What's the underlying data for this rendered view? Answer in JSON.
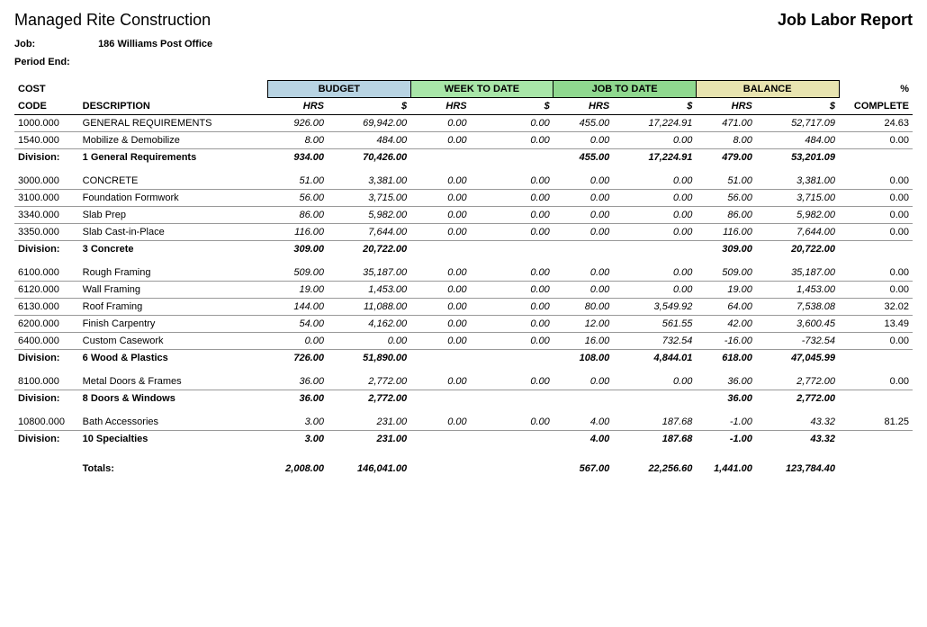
{
  "company": "Managed Rite Construction",
  "report_title": "Job Labor Report",
  "job_label": "Job:",
  "job_value": "186  Williams Post Office",
  "period_end_label": "Period End:",
  "period_end_value": "",
  "header": {
    "cost": "COST",
    "code": "CODE",
    "description": "DESCRIPTION",
    "budget": "BUDGET",
    "week": "WEEK TO DATE",
    "job": "JOB TO DATE",
    "balance": "BALANCE",
    "hrs": "HRS",
    "amt": "$",
    "pct_top": "%",
    "pct_bottom": "COMPLETE"
  },
  "colors": {
    "budget": "#b8d4e3",
    "week": "#a8e6a8",
    "job": "#8fd88f",
    "balance": "#e8e4b0"
  },
  "groups": [
    {
      "rows": [
        {
          "code": "1000.000",
          "desc": "GENERAL REQUIREMENTS",
          "b_hrs": "926.00",
          "b_amt": "69,942.00",
          "w_hrs": "0.00",
          "w_amt": "0.00",
          "j_hrs": "455.00",
          "j_amt": "17,224.91",
          "bal_hrs": "471.00",
          "bal_amt": "52,717.09",
          "pct": "24.63"
        },
        {
          "code": "1540.000",
          "desc": "Mobilize & Demobilize",
          "b_hrs": "8.00",
          "b_amt": "484.00",
          "w_hrs": "0.00",
          "w_amt": "0.00",
          "j_hrs": "0.00",
          "j_amt": "0.00",
          "bal_hrs": "8.00",
          "bal_amt": "484.00",
          "pct": "0.00"
        }
      ],
      "div_label": "Division:",
      "div_name": "1  General Requirements",
      "b_hrs": "934.00",
      "b_amt": "70,426.00",
      "w_hrs": "",
      "w_amt": "",
      "j_hrs": "455.00",
      "j_amt": "17,224.91",
      "bal_hrs": "479.00",
      "bal_amt": "53,201.09",
      "pct": ""
    },
    {
      "rows": [
        {
          "code": "3000.000",
          "desc": "CONCRETE",
          "b_hrs": "51.00",
          "b_amt": "3,381.00",
          "w_hrs": "0.00",
          "w_amt": "0.00",
          "j_hrs": "0.00",
          "j_amt": "0.00",
          "bal_hrs": "51.00",
          "bal_amt": "3,381.00",
          "pct": "0.00"
        },
        {
          "code": "3100.000",
          "desc": "Foundation Formwork",
          "b_hrs": "56.00",
          "b_amt": "3,715.00",
          "w_hrs": "0.00",
          "w_amt": "0.00",
          "j_hrs": "0.00",
          "j_amt": "0.00",
          "bal_hrs": "56.00",
          "bal_amt": "3,715.00",
          "pct": "0.00"
        },
        {
          "code": "3340.000",
          "desc": "Slab Prep",
          "b_hrs": "86.00",
          "b_amt": "5,982.00",
          "w_hrs": "0.00",
          "w_amt": "0.00",
          "j_hrs": "0.00",
          "j_amt": "0.00",
          "bal_hrs": "86.00",
          "bal_amt": "5,982.00",
          "pct": "0.00"
        },
        {
          "code": "3350.000",
          "desc": "Slab Cast-in-Place",
          "b_hrs": "116.00",
          "b_amt": "7,644.00",
          "w_hrs": "0.00",
          "w_amt": "0.00",
          "j_hrs": "0.00",
          "j_amt": "0.00",
          "bal_hrs": "116.00",
          "bal_amt": "7,644.00",
          "pct": "0.00"
        }
      ],
      "div_label": "Division:",
      "div_name": "3  Concrete",
      "b_hrs": "309.00",
      "b_amt": "20,722.00",
      "w_hrs": "",
      "w_amt": "",
      "j_hrs": "",
      "j_amt": "",
      "bal_hrs": "309.00",
      "bal_amt": "20,722.00",
      "pct": ""
    },
    {
      "rows": [
        {
          "code": "6100.000",
          "desc": "Rough Framing",
          "b_hrs": "509.00",
          "b_amt": "35,187.00",
          "w_hrs": "0.00",
          "w_amt": "0.00",
          "j_hrs": "0.00",
          "j_amt": "0.00",
          "bal_hrs": "509.00",
          "bal_amt": "35,187.00",
          "pct": "0.00"
        },
        {
          "code": "6120.000",
          "desc": "Wall Framing",
          "b_hrs": "19.00",
          "b_amt": "1,453.00",
          "w_hrs": "0.00",
          "w_amt": "0.00",
          "j_hrs": "0.00",
          "j_amt": "0.00",
          "bal_hrs": "19.00",
          "bal_amt": "1,453.00",
          "pct": "0.00"
        },
        {
          "code": "6130.000",
          "desc": "Roof Framing",
          "b_hrs": "144.00",
          "b_amt": "11,088.00",
          "w_hrs": "0.00",
          "w_amt": "0.00",
          "j_hrs": "80.00",
          "j_amt": "3,549.92",
          "bal_hrs": "64.00",
          "bal_amt": "7,538.08",
          "pct": "32.02"
        },
        {
          "code": "6200.000",
          "desc": "Finish Carpentry",
          "b_hrs": "54.00",
          "b_amt": "4,162.00",
          "w_hrs": "0.00",
          "w_amt": "0.00",
          "j_hrs": "12.00",
          "j_amt": "561.55",
          "bal_hrs": "42.00",
          "bal_amt": "3,600.45",
          "pct": "13.49"
        },
        {
          "code": "6400.000",
          "desc": "Custom Casework",
          "b_hrs": "0.00",
          "b_amt": "0.00",
          "w_hrs": "0.00",
          "w_amt": "0.00",
          "j_hrs": "16.00",
          "j_amt": "732.54",
          "bal_hrs": "-16.00",
          "bal_amt": "-732.54",
          "pct": "0.00"
        }
      ],
      "div_label": "Division:",
      "div_name": "6  Wood & Plastics",
      "b_hrs": "726.00",
      "b_amt": "51,890.00",
      "w_hrs": "",
      "w_amt": "",
      "j_hrs": "108.00",
      "j_amt": "4,844.01",
      "bal_hrs": "618.00",
      "bal_amt": "47,045.99",
      "pct": ""
    },
    {
      "rows": [
        {
          "code": "8100.000",
          "desc": "Metal Doors & Frames",
          "b_hrs": "36.00",
          "b_amt": "2,772.00",
          "w_hrs": "0.00",
          "w_amt": "0.00",
          "j_hrs": "0.00",
          "j_amt": "0.00",
          "bal_hrs": "36.00",
          "bal_amt": "2,772.00",
          "pct": "0.00"
        }
      ],
      "div_label": "Division:",
      "div_name": "8  Doors & Windows",
      "b_hrs": "36.00",
      "b_amt": "2,772.00",
      "w_hrs": "",
      "w_amt": "",
      "j_hrs": "",
      "j_amt": "",
      "bal_hrs": "36.00",
      "bal_amt": "2,772.00",
      "pct": ""
    },
    {
      "rows": [
        {
          "code": "10800.000",
          "desc": "Bath Accessories",
          "b_hrs": "3.00",
          "b_amt": "231.00",
          "w_hrs": "0.00",
          "w_amt": "0.00",
          "j_hrs": "4.00",
          "j_amt": "187.68",
          "bal_hrs": "-1.00",
          "bal_amt": "43.32",
          "pct": "81.25"
        }
      ],
      "div_label": "Division:",
      "div_name": "10  Specialties",
      "b_hrs": "3.00",
      "b_amt": "231.00",
      "w_hrs": "",
      "w_amt": "",
      "j_hrs": "4.00",
      "j_amt": "187.68",
      "bal_hrs": "-1.00",
      "bal_amt": "43.32",
      "pct": ""
    }
  ],
  "totals": {
    "label": "Totals:",
    "b_hrs": "2,008.00",
    "b_amt": "146,041.00",
    "w_hrs": "",
    "w_amt": "",
    "j_hrs": "567.00",
    "j_amt": "22,256.60",
    "bal_hrs": "1,441.00",
    "bal_amt": "123,784.40",
    "pct": ""
  }
}
